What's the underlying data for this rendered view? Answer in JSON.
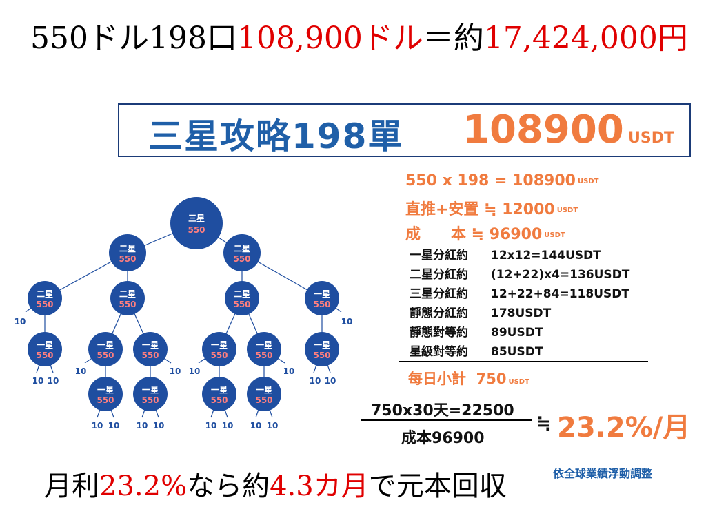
{
  "headline": {
    "part1": "550ドル198口",
    "part2": "108,900ドル",
    "part3": "＝約",
    "part4": "17,424,000円"
  },
  "title_box": {
    "name": "三星攻略198單",
    "amount": "108900",
    "unit": "USDT"
  },
  "cost_lines": [
    {
      "text": "550 x 198 = 108900",
      "unit": "USDT"
    },
    {
      "text": "直推+安置 ≒ 12000",
      "unit": "USDT"
    },
    {
      "text": "成　　本 ≒ 96900",
      "unit": "USDT"
    }
  ],
  "dividends": [
    {
      "label": "一星分紅約",
      "value": "12x12=144USDT"
    },
    {
      "label": "二星分紅約",
      "value": "(12+22)x4=136USDT"
    },
    {
      "label": "三星分紅約",
      "value": "12+22+84=118USDT"
    },
    {
      "label": "靜態分紅約",
      "value": "178USDT"
    },
    {
      "label": "靜態對等約",
      "value": "89USDT"
    },
    {
      "label": "星級對等約",
      "value": "85USDT"
    }
  ],
  "daily": {
    "label": "每日小計",
    "value": "750",
    "unit": "USDT"
  },
  "fraction": {
    "numerator": "750x30天=22500",
    "denominator": "成本96900",
    "approx": "≒",
    "result": "23.2%/月"
  },
  "note": "依全球業績浮動調整",
  "bottomline": {
    "part1": "月利",
    "part2": "23.2%",
    "part3": "なら約",
    "part4": "4.3カ月",
    "part5": "で元本回収"
  },
  "tree": {
    "nodes": [
      {
        "id": "root",
        "label": "三星",
        "value": "550"
      },
      {
        "id": "l1a",
        "label": "二星",
        "value": "550"
      },
      {
        "id": "l1b",
        "label": "二星",
        "value": "550"
      },
      {
        "id": "l2a",
        "label": "二星",
        "value": "550"
      },
      {
        "id": "l2b",
        "label": "二星",
        "value": "550"
      },
      {
        "id": "l2c",
        "label": "二星",
        "value": "550"
      },
      {
        "id": "l2d",
        "label": "一星",
        "value": "550"
      },
      {
        "id": "l3a",
        "label": "一星",
        "value": "550"
      },
      {
        "id": "l3b",
        "label": "一星",
        "value": "550"
      },
      {
        "id": "l3c",
        "label": "一星",
        "value": "550"
      },
      {
        "id": "l3d",
        "label": "一星",
        "value": "550"
      },
      {
        "id": "l3e",
        "label": "一星",
        "value": "550"
      },
      {
        "id": "l3f",
        "label": "一星",
        "value": "550"
      },
      {
        "id": "l4a",
        "label": "一星",
        "value": "550"
      },
      {
        "id": "l4b",
        "label": "一星",
        "value": "550"
      },
      {
        "id": "l4c",
        "label": "一星",
        "value": "550"
      },
      {
        "id": "l4d",
        "label": "一星",
        "value": "550"
      }
    ],
    "leaf_value": "10"
  },
  "colors": {
    "orange": "#f07b3f",
    "blue": "#1f5fa8",
    "node_blue": "#1f4ea0",
    "red": "#e00000"
  }
}
